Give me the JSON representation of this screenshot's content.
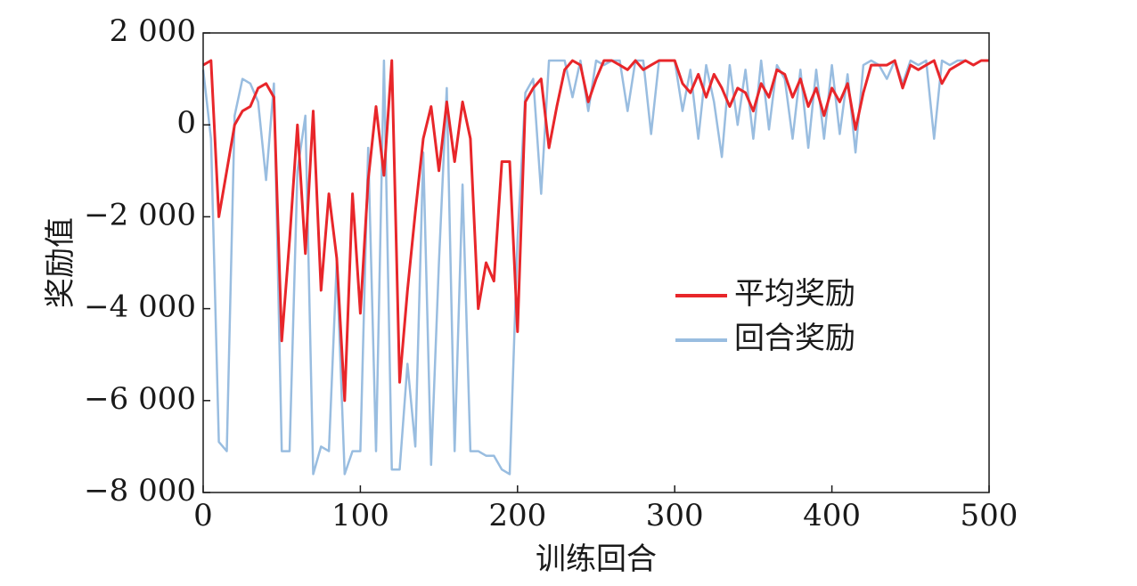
{
  "chart_data": {
    "type": "line",
    "xlabel": "训练回合",
    "ylabel": "奖励值",
    "x": [
      0,
      5,
      10,
      15,
      20,
      25,
      30,
      35,
      40,
      45,
      50,
      55,
      60,
      65,
      70,
      75,
      80,
      85,
      90,
      95,
      100,
      105,
      110,
      115,
      120,
      125,
      130,
      135,
      140,
      145,
      150,
      155,
      160,
      165,
      170,
      175,
      180,
      185,
      190,
      195,
      200,
      205,
      210,
      215,
      220,
      225,
      230,
      235,
      240,
      245,
      250,
      255,
      260,
      265,
      270,
      275,
      280,
      285,
      290,
      295,
      300,
      305,
      310,
      315,
      320,
      325,
      330,
      335,
      340,
      345,
      350,
      355,
      360,
      365,
      370,
      375,
      380,
      385,
      390,
      395,
      400,
      405,
      410,
      415,
      420,
      425,
      430,
      435,
      440,
      445,
      450,
      455,
      460,
      465,
      470,
      475,
      480,
      485,
      490,
      495,
      500
    ],
    "series": [
      {
        "name": "平均奖励",
        "color": "#e8262a",
        "values": [
          1300,
          1400,
          -2000,
          -1000,
          0,
          300,
          400,
          800,
          900,
          600,
          -4700,
          -2500,
          0,
          -2800,
          300,
          -3600,
          -1500,
          -2900,
          -6000,
          -1500,
          -4100,
          -1200,
          400,
          -1100,
          1400,
          -5600,
          -3600,
          -1900,
          -300,
          400,
          -1000,
          500,
          -800,
          500,
          -300,
          -4000,
          -3000,
          -3400,
          -800,
          -800,
          -4500,
          500,
          800,
          1000,
          -500,
          400,
          1200,
          1400,
          1300,
          500,
          1000,
          1400,
          1400,
          1300,
          1200,
          1400,
          1200,
          1300,
          1400,
          1400,
          1400,
          900,
          700,
          1100,
          600,
          1100,
          800,
          400,
          800,
          700,
          300,
          900,
          600,
          1200,
          1100,
          600,
          1000,
          400,
          800,
          200,
          800,
          500,
          900,
          -100,
          700,
          1300,
          1300,
          1300,
          1400,
          800,
          1300,
          1200,
          1300,
          1400,
          900,
          1200,
          1300,
          1400,
          1300,
          1400,
          1400
        ]
      },
      {
        "name": "回合奖励",
        "color": "#99bde0",
        "values": [
          1200,
          -300,
          -6900,
          -7100,
          200,
          1000,
          900,
          500,
          -1200,
          900,
          -7100,
          -7100,
          -1000,
          200,
          -7600,
          -7000,
          -7100,
          -3000,
          -7600,
          -7100,
          -7100,
          -500,
          -7100,
          1400,
          -7500,
          -7500,
          -5200,
          -7000,
          -600,
          -7400,
          -3000,
          800,
          -7100,
          -1300,
          -7100,
          -7100,
          -7200,
          -7200,
          -7500,
          -7600,
          -2500,
          700,
          1000,
          -1500,
          1400,
          1400,
          1400,
          600,
          1400,
          300,
          1400,
          1300,
          1400,
          1400,
          300,
          1400,
          1400,
          -200,
          1400,
          1400,
          1400,
          300,
          1200,
          -300,
          1300,
          500,
          -700,
          1300,
          0,
          1200,
          -300,
          1400,
          -100,
          1300,
          1000,
          -300,
          1200,
          -500,
          1200,
          -300,
          1300,
          -200,
          1100,
          -600,
          1300,
          1400,
          1300,
          1000,
          1400,
          900,
          1400,
          1300,
          1400,
          -300,
          1400,
          1300,
          1400,
          1400,
          1300,
          1400,
          1400
        ]
      }
    ],
    "xlim": [
      0,
      500
    ],
    "xticks": [
      0,
      100,
      200,
      300,
      400,
      500
    ],
    "ylim": [
      -8000,
      2000
    ],
    "yticks": [
      {
        "value": -8000,
        "label": "−8 000"
      },
      {
        "value": -6000,
        "label": "−6 000"
      },
      {
        "value": -4000,
        "label": "−4 000"
      },
      {
        "value": -2000,
        "label": "−2 000"
      },
      0,
      {
        "value": 2000,
        "label": "2 000"
      }
    ],
    "legend": "center right"
  }
}
